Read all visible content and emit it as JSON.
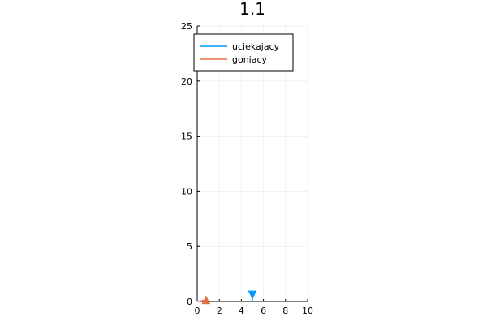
{
  "chart_data": {
    "type": "line",
    "title": "1.1",
    "xlabel": "",
    "ylabel": "",
    "xlim": [
      0,
      10
    ],
    "ylim": [
      0,
      25
    ],
    "xticks": [
      0,
      2,
      4,
      6,
      8,
      10
    ],
    "yticks": [
      0,
      5,
      10,
      15,
      20,
      25
    ],
    "grid": true,
    "legend_position": "top-left",
    "series": [
      {
        "name": "uciekajacy",
        "color": "#009AFA",
        "x": [
          5.0,
          5.0
        ],
        "y": [
          0.0,
          0.6
        ],
        "marker": "downward-triangle",
        "marker_point": [
          5.0,
          0.6
        ]
      },
      {
        "name": "goniacy",
        "color": "#E26F46",
        "x": [
          0.0,
          0.4,
          0.8
        ],
        "y": [
          0.0,
          0.05,
          0.15
        ],
        "marker": "upward-triangle",
        "marker_point": [
          0.8,
          0.15
        ]
      }
    ]
  }
}
